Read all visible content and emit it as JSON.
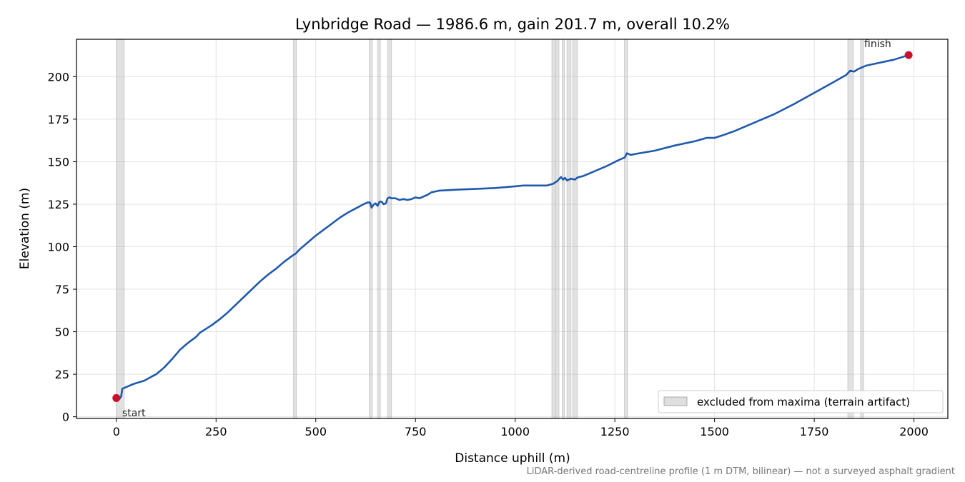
{
  "chart_data": {
    "type": "line",
    "title": "Lynbridge Road — 1986.6 m, gain 201.7 m, overall 10.2%",
    "xlabel": "Distance uphill (m)",
    "ylabel": "Elevation (m)",
    "xlim": [
      -100,
      2085
    ],
    "ylim": [
      -1,
      222
    ],
    "xticks": [
      0,
      250,
      500,
      750,
      1000,
      1250,
      1500,
      1750,
      2000
    ],
    "yticks": [
      0,
      25,
      50,
      75,
      100,
      125,
      150,
      175,
      200
    ],
    "grid": true,
    "legend": {
      "placement": "lower-right",
      "label": "excluded from maxima (terrain artifact)"
    },
    "footnote": "LiDAR-derived road-centreline profile (1 m DTM, bilinear) — not a surveyed asphalt gradient",
    "line_color": "#1f5aab",
    "marker_color": "#c8102e",
    "band_color": "#b0b0b0",
    "series": [
      {
        "x": [
          0,
          8,
          12,
          15,
          20,
          30,
          40,
          50,
          60,
          70,
          80,
          90,
          100,
          110,
          120,
          140,
          160,
          180,
          200,
          210,
          220,
          240,
          260,
          280,
          300,
          320,
          340,
          360,
          380,
          400,
          420,
          440,
          450,
          460,
          480,
          500,
          520,
          540,
          560,
          580,
          600,
          620,
          630,
          636,
          640,
          646,
          650,
          655,
          660,
          665,
          670,
          676,
          680,
          685,
          690,
          700,
          710,
          720,
          730,
          740,
          750,
          760,
          770,
          780,
          790,
          800,
          810,
          850,
          900,
          950,
          1000,
          1020,
          1030,
          1050,
          1080,
          1095,
          1105,
          1115,
          1120,
          1125,
          1130,
          1140,
          1150,
          1155,
          1160,
          1170,
          1200,
          1230,
          1260,
          1275,
          1280,
          1290,
          1300,
          1350,
          1400,
          1450,
          1480,
          1500,
          1520,
          1550,
          1600,
          1650,
          1700,
          1750,
          1800,
          1830,
          1840,
          1850,
          1860,
          1870,
          1880,
          1900,
          1950,
          1986.6
        ],
        "y": [
          11,
          10.5,
          12,
          16.5,
          17,
          18,
          19,
          19.8,
          20.5,
          21.2,
          22.5,
          23.8,
          25,
          27,
          29,
          34,
          39.5,
          43.5,
          47,
          49.5,
          51,
          54,
          57.5,
          61.5,
          66,
          70.5,
          75,
          79.5,
          83.5,
          87,
          91,
          94.5,
          96,
          98.5,
          102.5,
          106.5,
          110,
          113.5,
          117,
          120,
          122.5,
          125,
          126,
          126,
          123,
          125,
          125.5,
          124,
          126.5,
          126.5,
          125,
          125.5,
          128.5,
          129,
          128.5,
          128.5,
          127.5,
          128,
          127.5,
          128,
          129,
          128.5,
          129.5,
          130.5,
          132,
          132.5,
          133,
          133.5,
          134,
          134.5,
          135.5,
          136,
          136,
          136,
          136,
          137,
          138.5,
          141,
          139.5,
          140.5,
          139,
          140,
          139.5,
          140.5,
          141,
          141.5,
          144.5,
          147.5,
          151,
          152.5,
          155,
          154,
          154.5,
          156.5,
          159.5,
          162,
          164,
          164,
          165.5,
          168,
          173,
          178,
          184,
          190.5,
          197,
          201,
          203.5,
          203,
          204.5,
          205.5,
          206.5,
          207.5,
          210,
          212.7
        ]
      }
    ],
    "excluded_ranges": [
      [
        0,
        20
      ],
      [
        444,
        452
      ],
      [
        634,
        642
      ],
      [
        655,
        662
      ],
      [
        680,
        690
      ],
      [
        1092,
        1100
      ],
      [
        1102,
        1110
      ],
      [
        1118,
        1124
      ],
      [
        1130,
        1140
      ],
      [
        1144,
        1156
      ],
      [
        1274,
        1282
      ],
      [
        1834,
        1848
      ],
      [
        1866,
        1874
      ]
    ],
    "start": {
      "label": "start",
      "x": 0,
      "y": 11
    },
    "finish": {
      "label": "finish",
      "x": 1986.6,
      "y": 212.7
    }
  }
}
